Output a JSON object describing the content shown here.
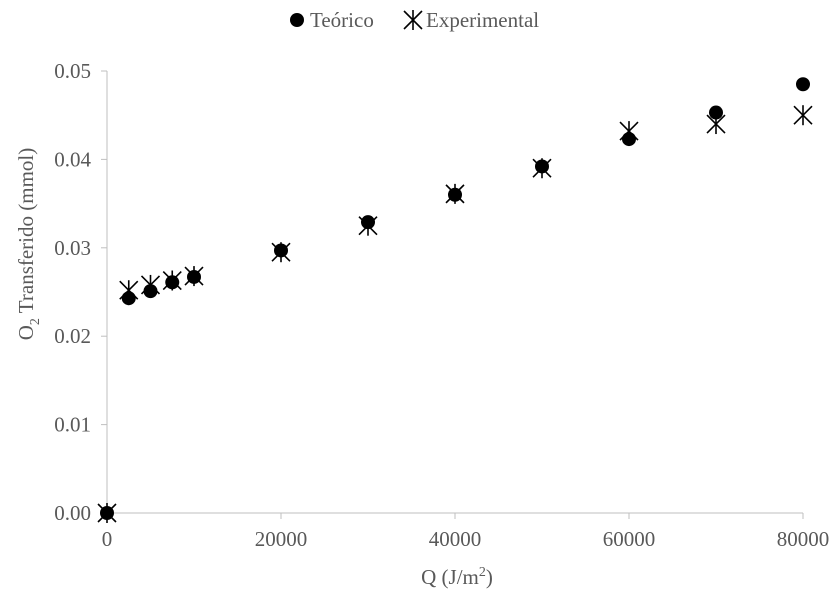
{
  "chart_data": {
    "type": "scatter",
    "title": "",
    "xlabel": {
      "main": "Q (J/m",
      "sup": "2",
      "tail": ")"
    },
    "ylabel": {
      "main": "O",
      "sub": "2",
      "tail": " Transferido (mmol)"
    },
    "xlim": [
      0,
      80000
    ],
    "ylim": [
      0,
      0.05
    ],
    "xticks": [
      0,
      20000,
      40000,
      60000,
      80000
    ],
    "xtick_labels": [
      "0",
      "20000",
      "40000",
      "60000",
      "80000"
    ],
    "yticks": [
      0,
      0.01,
      0.02,
      0.03,
      0.04,
      0.05
    ],
    "ytick_labels": [
      "0.00",
      "0.01",
      "0.02",
      "0.03",
      "0.04",
      "0.05"
    ],
    "grid": false,
    "legend_position": "top-center",
    "series": [
      {
        "name": "Teórico",
        "marker": "circle",
        "color": "#000000",
        "x": [
          0,
          2500,
          5000,
          7500,
          10000,
          20000,
          30000,
          40000,
          50000,
          60000,
          70000,
          80000
        ],
        "y": [
          0.0,
          0.0243,
          0.0251,
          0.0261,
          0.0267,
          0.0297,
          0.0329,
          0.036,
          0.0392,
          0.0423,
          0.0453,
          0.0485
        ]
      },
      {
        "name": "Experimental",
        "marker": "asterisk",
        "color": "#000000",
        "x": [
          0,
          2500,
          5000,
          7500,
          10000,
          20000,
          30000,
          40000,
          50000,
          60000,
          70000,
          80000
        ],
        "y": [
          0.0,
          0.0252,
          0.0258,
          0.0263,
          0.0268,
          0.0295,
          0.0325,
          0.0361,
          0.039,
          0.0432,
          0.044,
          0.045
        ]
      }
    ]
  }
}
